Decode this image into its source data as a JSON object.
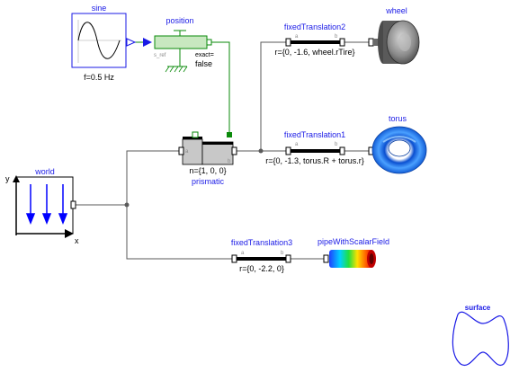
{
  "blocks": {
    "sine": {
      "name": "sine",
      "param": "f=0.5 Hz"
    },
    "position": {
      "name": "position",
      "port_label": "s_ref",
      "exact_label": "exact=",
      "exact_value": "false"
    },
    "world": {
      "name": "world",
      "axis_x": "x",
      "axis_y": "y"
    },
    "prismatic": {
      "name": "prismatic",
      "param": "n={1, 0, 0}",
      "port_a": "a",
      "port_b": "b"
    },
    "fixedTranslation2": {
      "name": "fixedTranslation2",
      "param": "r={0, -1.6, wheel.rTire}",
      "port_a": "a",
      "port_b": "b"
    },
    "fixedTranslation1": {
      "name": "fixedTranslation1",
      "param": "r={0, -1.3, torus.R + torus.r}",
      "port_a": "a",
      "port_b": "b"
    },
    "fixedTranslation3": {
      "name": "fixedTranslation3",
      "param": "r={0, -2.2, 0}",
      "port_a": "a",
      "port_b": "b"
    },
    "wheel": {
      "name": "wheel"
    },
    "torus": {
      "name": "torus"
    },
    "pipe": {
      "name": "pipeWithScalarField"
    },
    "surface": {
      "name": "surface"
    }
  },
  "colors": {
    "label": "#1a1ae6",
    "connection": "#5a5a5a",
    "signal": "#0a8a0a",
    "torus": "#1e6fe6",
    "world_arrows": "#0000ff"
  }
}
